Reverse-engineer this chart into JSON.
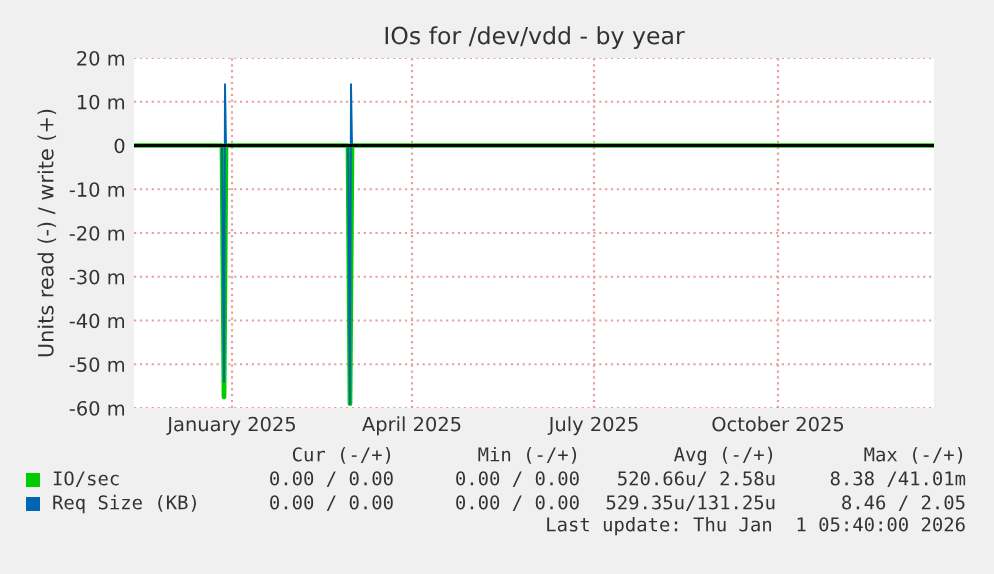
{
  "chart_data": {
    "type": "line",
    "title": "IOs for /dev/vdd - by year",
    "ylabel": "Units read (-) / write (+)",
    "xlim": [
      "2024-11-27",
      "2026-01-01"
    ],
    "xticks": [
      {
        "value": "2025-01-15",
        "label": "January 2025"
      },
      {
        "value": "2025-04-15",
        "label": "April 2025"
      },
      {
        "value": "2025-07-15",
        "label": "July 2025"
      },
      {
        "value": "2025-10-15",
        "label": "October 2025"
      }
    ],
    "ylim": [
      -60,
      20
    ],
    "yticks": [
      {
        "value": -60,
        "label": "-60 m"
      },
      {
        "value": -50,
        "label": "-50 m"
      },
      {
        "value": -40,
        "label": "-40 m"
      },
      {
        "value": -30,
        "label": "-30 m"
      },
      {
        "value": -20,
        "label": "-20 m"
      },
      {
        "value": -10,
        "label": "-10 m"
      },
      {
        "value": 0,
        "label": "0"
      },
      {
        "value": 10,
        "label": "10 m"
      },
      {
        "value": 20,
        "label": "20 m"
      }
    ],
    "grid": true,
    "legend": "bottom",
    "marker": "none",
    "line_style": "solid",
    "ref_lines": [
      {
        "axis": "y",
        "value": 0,
        "color": "#000000"
      }
    ],
    "series": [
      {
        "name": "IO/sec",
        "color": "#00cc00",
        "x": [
          "2024-11-27",
          "2025-01-10",
          "2025-01-11",
          "2025-01-12",
          "2025-03-14",
          "2025-03-15",
          "2025-03-16",
          "2026-01-01"
        ],
        "values": [
          0,
          0,
          -57.5,
          0,
          0,
          -59,
          0,
          0
        ]
      },
      {
        "name": "Req Size (KB)",
        "color": "#0066b3",
        "x": [
          "2024-11-27",
          "2025-01-10",
          "2025-01-11",
          "2025-01-11T12:00",
          "2025-01-12",
          "2025-03-14",
          "2025-03-15",
          "2025-03-15T12:00",
          "2025-03-16",
          "2026-01-01"
        ],
        "values": [
          0,
          0,
          -54,
          14,
          0,
          0,
          -59,
          14,
          0,
          0
        ]
      }
    ],
    "annotations": [
      "Cur (-/+)",
      "Min (-/+)",
      "Avg (-/+)",
      "Max (-/+)",
      "0.00 / 0.00",
      "0.00 / 0.00",
      "520.66u/ 2.58u",
      "8.38 /41.01m",
      "0.00 / 0.00",
      "0.00 / 0.00",
      "529.35u/131.25u",
      "8.46 / 2.05",
      "Last update: Thu Jan  1 05:40:00 2026"
    ]
  }
}
